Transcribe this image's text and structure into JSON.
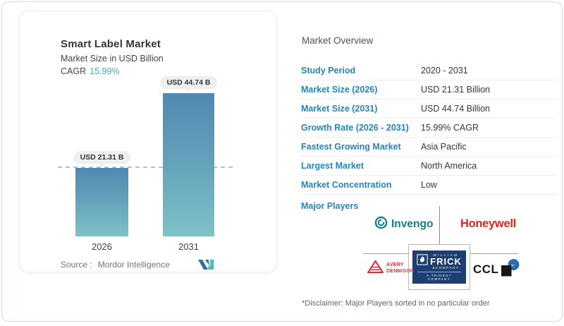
{
  "card": {
    "title": "Smart Label Market",
    "subtitle": "Market Size in USD Billion",
    "cagr_label": "CAGR",
    "cagr_value": "15.99%",
    "source_label": "Source :",
    "source_value": "Mordor Intelligence"
  },
  "chart_data": {
    "type": "bar",
    "title": "Smart Label Market",
    "subtitle": "Market Size in USD Billion",
    "categories": [
      "2026",
      "2031"
    ],
    "values": [
      21.31,
      44.74
    ],
    "bar_labels": [
      "USD 21.31 B",
      "USD 44.74 B"
    ],
    "unit": "USD Billion",
    "cagr": "15.99%",
    "baseline_dashed_at": 21.31,
    "ylim": [
      0,
      44.74
    ],
    "grid": false,
    "legend": false
  },
  "overview": {
    "heading": "Market Overview",
    "rows": [
      {
        "label": "Study Period",
        "value": "2020 - 2031"
      },
      {
        "label": "Market Size (2026)",
        "value": "USD 21.31 Billion"
      },
      {
        "label": "Market Size (2031)",
        "value": "USD 44.74 Billion"
      },
      {
        "label": "Growth Rate (2026 - 2031)",
        "value": "15.99% CAGR"
      },
      {
        "label": "Fastest Growing Market",
        "value": "Asia Pacific"
      },
      {
        "label": "Largest Market",
        "value": "North America"
      },
      {
        "label": "Market Concentration",
        "value": "Low"
      }
    ],
    "major_players_label": "Major Players",
    "players": {
      "invengo": "Invengo",
      "honeywell": "Honeywell",
      "avery_line1": "AVERY",
      "avery_line2": "DENNISON",
      "frick_top": "WILLIAM",
      "frick_big": "FRICK",
      "frick_co": "&COMPANY",
      "frick_trident": "A TRIDENT COMPANY",
      "ccl": "CCL"
    },
    "disclaimer": "*Disclaimer: Major Players sorted in no particular order"
  },
  "colors": {
    "accent_blue": "#2385ba",
    "teal_accent": "#45a8b4",
    "bar_gradient_top": "#5089b1",
    "bar_gradient_bottom": "#7fc2c8",
    "invengo_teal": "#0f7f88",
    "honeywell_red": "#e1251b",
    "avery_red": "#cf3339",
    "frick_navy": "#1c3e70",
    "ccl_blue": "#2a6db5",
    "ccl_yellow": "#f3c300",
    "mordor_logo_blue": "#2f6f9c",
    "mordor_logo_teal": "#4db8ba"
  }
}
